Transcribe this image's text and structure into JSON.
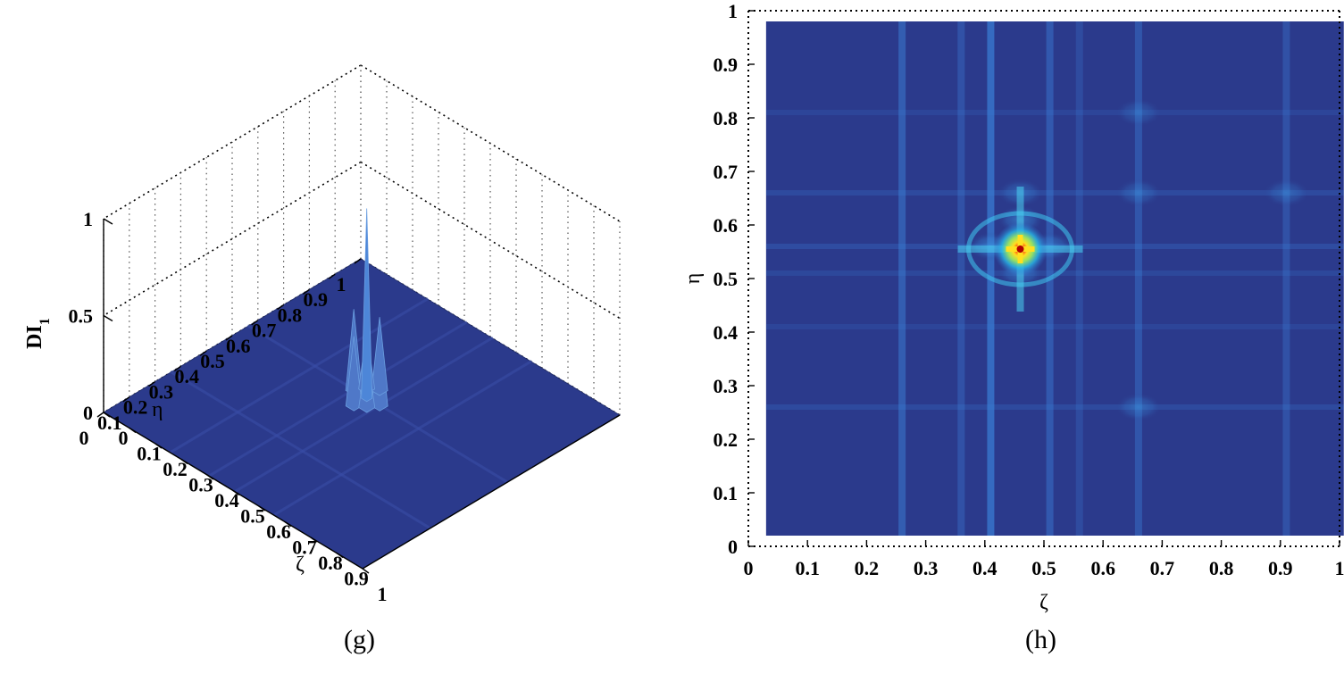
{
  "panels": [
    {
      "caption": "(g)",
      "chart_data": {
        "type": "surface",
        "x_label": "ζ",
        "y_label": "η",
        "z_label": "DI",
        "z_label_subscript": "1",
        "x_ticks": [
          "0",
          "0.1",
          "0.2",
          "0.3",
          "0.4",
          "0.5",
          "0.6",
          "0.7",
          "0.8",
          "0.9",
          "1"
        ],
        "y_ticks": [
          "0",
          "0.1",
          "0.2",
          "0.3",
          "0.4",
          "0.5",
          "0.6",
          "0.7",
          "0.8",
          "0.9",
          "1"
        ],
        "z_ticks": [
          "0",
          "0.5",
          "1"
        ],
        "xlim": [
          0,
          1
        ],
        "ylim": [
          0,
          1
        ],
        "zlim": [
          0,
          1
        ],
        "grid": true,
        "surface_color": "#2b3a8c",
        "peak": {
          "x": 0.46,
          "y": 0.56,
          "z": 0.98
        },
        "side_lobes": [
          {
            "x": 0.41,
            "y": 0.56,
            "z": 0.42
          },
          {
            "x": 0.51,
            "y": 0.56,
            "z": 0.4
          },
          {
            "x": 0.46,
            "y": 0.61,
            "z": 0.38
          },
          {
            "x": 0.46,
            "y": 0.51,
            "z": 0.36
          },
          {
            "x": 0.43,
            "y": 0.59,
            "z": 0.3
          },
          {
            "x": 0.49,
            "y": 0.53,
            "z": 0.28
          }
        ]
      }
    },
    {
      "caption": "(h)",
      "chart_data": {
        "type": "heatmap",
        "x_label": "ζ",
        "y_label": "η",
        "x_ticks": [
          "0",
          "0.1",
          "0.2",
          "0.3",
          "0.4",
          "0.5",
          "0.6",
          "0.7",
          "0.8",
          "0.9",
          "1"
        ],
        "y_ticks": [
          "0",
          "0.1",
          "0.2",
          "0.3",
          "0.4",
          "0.5",
          "0.6",
          "0.7",
          "0.8",
          "0.9",
          "1"
        ],
        "xlim": [
          0,
          1
        ],
        "ylim": [
          0,
          1
        ],
        "background_color": "#2b3a8c",
        "peak": {
          "x": 0.46,
          "y": 0.555,
          "value": 1.0
        },
        "vertical_lines": [
          {
            "x": 0.26,
            "intensity": 0.5
          },
          {
            "x": 0.36,
            "intensity": 0.35
          },
          {
            "x": 0.41,
            "intensity": 0.7
          },
          {
            "x": 0.51,
            "intensity": 0.45
          },
          {
            "x": 0.56,
            "intensity": 0.25
          },
          {
            "x": 0.66,
            "intensity": 0.4
          },
          {
            "x": 0.91,
            "intensity": 0.35
          }
        ],
        "horizontal_lines": [
          {
            "y": 0.81,
            "intensity": 0.25
          },
          {
            "y": 0.66,
            "intensity": 0.35
          },
          {
            "y": 0.56,
            "intensity": 0.4
          },
          {
            "y": 0.51,
            "intensity": 0.3
          },
          {
            "y": 0.41,
            "intensity": 0.25
          },
          {
            "y": 0.26,
            "intensity": 0.35
          }
        ],
        "hot_spots": [
          {
            "x": 0.46,
            "y": 0.66,
            "value": 0.45
          },
          {
            "x": 0.66,
            "y": 0.26,
            "value": 0.45
          },
          {
            "x": 0.66,
            "y": 0.66,
            "value": 0.4
          },
          {
            "x": 0.91,
            "y": 0.66,
            "value": 0.4
          },
          {
            "x": 0.66,
            "y": 0.81,
            "value": 0.35
          },
          {
            "x": 0.41,
            "y": 0.56,
            "value": 0.65
          },
          {
            "x": 0.51,
            "y": 0.56,
            "value": 0.6
          },
          {
            "x": 0.46,
            "y": 0.61,
            "value": 0.6
          },
          {
            "x": 0.46,
            "y": 0.51,
            "value": 0.55
          }
        ],
        "colormap": [
          "#2b3a8c",
          "#2f6fd0",
          "#28b8e8",
          "#9be860",
          "#ffe020",
          "#ff4010",
          "#8a0000"
        ]
      }
    }
  ]
}
